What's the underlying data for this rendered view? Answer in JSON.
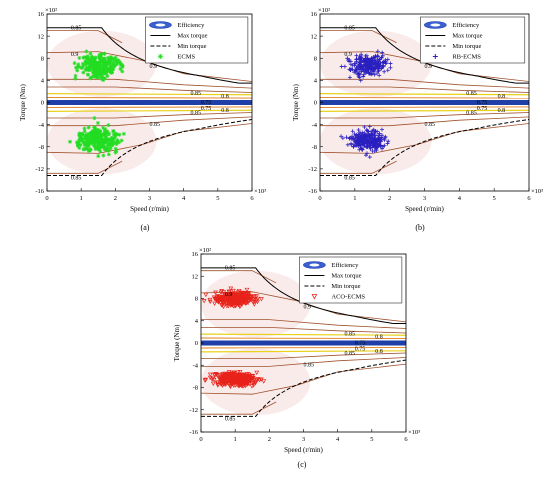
{
  "colors": {
    "efficiency_fill": "#3a5fd0",
    "band_yellow": "#e8d21a",
    "band_orange": "#e07a1a",
    "band_blue": "#1f3ea8",
    "contour_brown": "#a0522d",
    "pink_tint": "#f6dede",
    "ecms_green": "#22dd22",
    "rb_blue": "#2a1fbf",
    "aco_red": "#e8231b"
  },
  "chart_data": [
    {
      "type": "scatter",
      "caption": "(a)",
      "xlabel": "Speed (r/min)",
      "ylabel": "Torque (Nm)",
      "x_multiplier": "×10³",
      "y_multiplier": "×10²",
      "xlim": [
        0,
        6
      ],
      "ylim": [
        -16,
        16
      ],
      "x_ticks": [
        "0",
        "1",
        "2",
        "3",
        "4",
        "5",
        "6"
      ],
      "y_ticks": [
        "16",
        "12",
        "8",
        "4",
        "0",
        "-4",
        "-8",
        "-12",
        "-16"
      ],
      "legend": [
        "Efficiency",
        "Max torque",
        "Min torque",
        "ECMS"
      ],
      "contour_labels": [
        "0.85",
        "0.9",
        "0.85",
        "0.8",
        "0.75",
        "0.8",
        "0.85",
        "0.9",
        "0.85",
        "0.75",
        "0.85"
      ],
      "series_marker": "star",
      "clusters": [
        {
          "center": [
            1.5,
            6.5
          ],
          "spread": [
            0.55,
            2.4
          ]
        },
        {
          "center": [
            1.5,
            -6.8
          ],
          "spread": [
            0.55,
            2.4
          ]
        }
      ]
    },
    {
      "type": "scatter",
      "caption": "(b)",
      "xlabel": "Speed (r/min)",
      "ylabel": "Torque (Nm)",
      "x_multiplier": "×10³",
      "y_multiplier": "×10²",
      "xlim": [
        0,
        6
      ],
      "ylim": [
        -16,
        16
      ],
      "x_ticks": [
        "0",
        "1",
        "2",
        "3",
        "4",
        "5",
        "6"
      ],
      "y_ticks": [
        "16",
        "12",
        "8",
        "4",
        "0",
        "-4",
        "-8",
        "-12",
        "-16"
      ],
      "legend": [
        "Efficiency",
        "Max torque",
        "Min torque",
        "RB-ECMS"
      ],
      "contour_labels": [
        "0.85",
        "0.9",
        "0.85",
        "0.8",
        "0.75",
        "0.8",
        "0.85",
        "0.9",
        "0.85",
        "0.75",
        "0.85"
      ],
      "series_marker": "plus",
      "clusters": [
        {
          "center": [
            1.4,
            6.8
          ],
          "spread": [
            0.5,
            2.0
          ]
        },
        {
          "center": [
            1.35,
            -6.8
          ],
          "spread": [
            0.5,
            2.0
          ]
        }
      ]
    },
    {
      "type": "scatter",
      "caption": "(c)",
      "xlabel": "Speed (r/min)",
      "ylabel": "Torque (Nm)",
      "x_multiplier": "×10³",
      "y_multiplier": "×10²",
      "xlim": [
        0,
        6
      ],
      "ylim": [
        -16,
        16
      ],
      "x_ticks": [
        "0",
        "1",
        "2",
        "3",
        "4",
        "5",
        "6"
      ],
      "y_ticks": [
        "16",
        "12",
        "8",
        "4",
        "0",
        "-4",
        "-8",
        "-12",
        "-16"
      ],
      "legend": [
        "Efficiency",
        "Max torque",
        "Min torque",
        "ACO-ECMS"
      ],
      "contour_labels": [
        "0.85",
        "0.9",
        "0.85",
        "0.8",
        "0.75",
        "0.8",
        "0.85",
        "0.9",
        "0.85",
        "0.75",
        "0.85"
      ],
      "series_marker": "triangle-down",
      "clusters": [
        {
          "center": [
            1.0,
            8.0
          ],
          "spread": [
            0.55,
            1.2
          ]
        },
        {
          "center": [
            1.0,
            -6.5
          ],
          "spread": [
            0.55,
            1.3
          ]
        }
      ]
    }
  ]
}
